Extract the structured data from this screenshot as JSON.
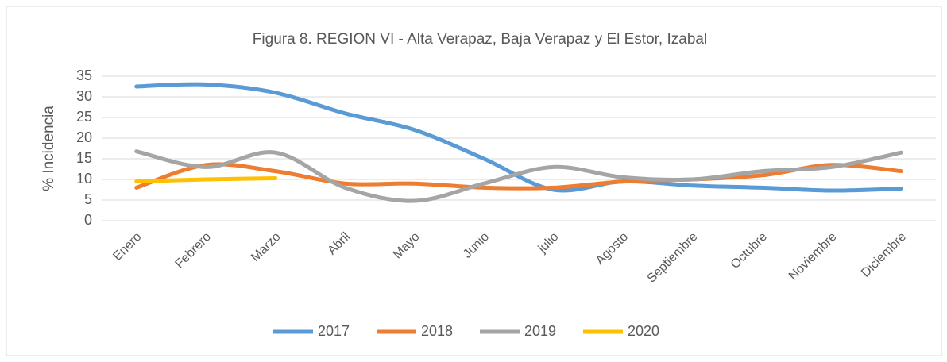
{
  "chart_data": {
    "type": "line",
    "title": "Figura 8.  REGION VI - Alta Verapaz, Baja Verapaz y El Estor, Izabal",
    "y_label": "% Incidencia",
    "categories": [
      "Enero",
      "Febrero",
      "Marzo",
      "Abril",
      "Mayo",
      "Junio",
      "julio",
      "Agosto",
      "Septiembre",
      "Octubre",
      "Noviembre",
      "Diciembre"
    ],
    "series": [
      {
        "name": "2017",
        "color": "#5b9bd5",
        "values": [
          32.5,
          33,
          31,
          26,
          22,
          15,
          7.5,
          9.5,
          8.5,
          8,
          7.3,
          7.8
        ]
      },
      {
        "name": "2018",
        "color": "#ed7d31",
        "values": [
          8,
          13.5,
          12,
          9,
          9,
          8,
          8,
          9.5,
          10,
          11,
          13.5,
          12
        ]
      },
      {
        "name": "2019",
        "color": "#a5a5a5",
        "values": [
          16.8,
          13,
          16.5,
          8,
          4.8,
          9,
          13,
          10.5,
          10,
          12,
          13,
          16.5
        ]
      },
      {
        "name": "2020",
        "color": "#ffc000",
        "values": [
          9.5,
          10,
          10.3,
          null,
          null,
          null,
          null,
          null,
          null,
          null,
          null,
          null
        ]
      }
    ],
    "ylim": [
      0,
      35
    ],
    "yticks": [
      0,
      5,
      10,
      15,
      20,
      25,
      30,
      35
    ],
    "grid": true,
    "legend": "bottom"
  }
}
